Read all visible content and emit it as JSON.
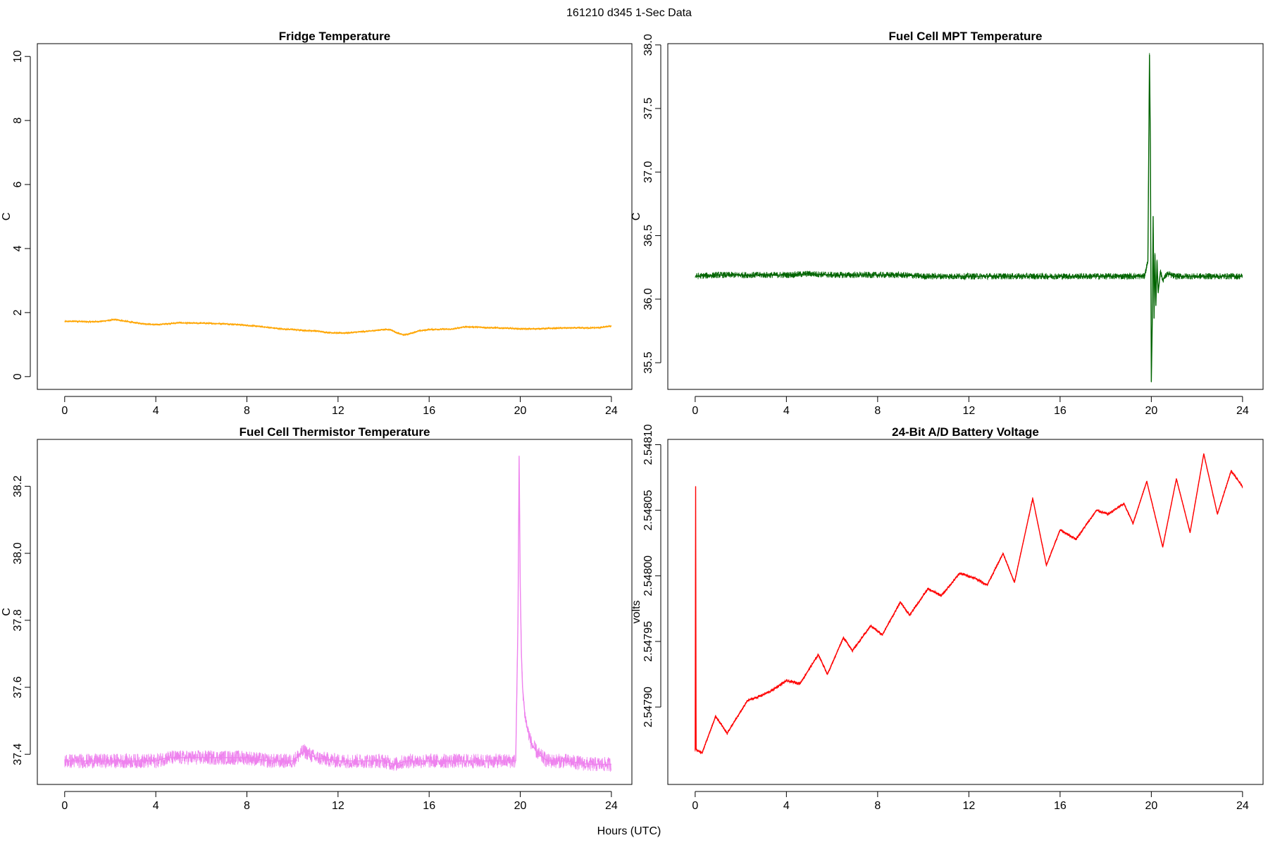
{
  "figure": {
    "suptitle": "161210   d345   1-Sec Data",
    "xlabel": "Hours (UTC)"
  },
  "chart_data": [
    {
      "type": "line",
      "title": "Fridge Temperature",
      "ylabel": "C",
      "xlabel": "",
      "xlim": [
        -1.2,
        24.9
      ],
      "ylim": [
        -0.4,
        10.4
      ],
      "xticks": [
        0,
        4,
        8,
        12,
        16,
        20,
        24
      ],
      "yticks": [
        0,
        2,
        4,
        6,
        8,
        10
      ],
      "ytick_labels": [
        "0",
        "2",
        "4",
        "6",
        "8",
        "10"
      ],
      "grid": false,
      "series": [
        {
          "color": "#FFA500",
          "noise": 0.03,
          "x": [
            0,
            0.5,
            1,
            1.5,
            2,
            2.2,
            2.5,
            3,
            3.5,
            4,
            4.5,
            5,
            5.5,
            6,
            6.5,
            7,
            7.5,
            8,
            8.5,
            9,
            9.5,
            10,
            10.5,
            11,
            11.5,
            12,
            12.5,
            13,
            13.5,
            14,
            14.3,
            14.6,
            14.9,
            15.2,
            15.5,
            16,
            16.5,
            17,
            17.5,
            18,
            18.5,
            19,
            19.5,
            20,
            20.5,
            21,
            21.5,
            22,
            22.5,
            23,
            23.5,
            24
          ],
          "y": [
            1.72,
            1.73,
            1.71,
            1.72,
            1.76,
            1.78,
            1.75,
            1.69,
            1.65,
            1.62,
            1.65,
            1.68,
            1.67,
            1.67,
            1.66,
            1.65,
            1.63,
            1.6,
            1.57,
            1.53,
            1.49,
            1.47,
            1.44,
            1.43,
            1.38,
            1.36,
            1.37,
            1.4,
            1.43,
            1.47,
            1.47,
            1.36,
            1.3,
            1.35,
            1.42,
            1.47,
            1.48,
            1.48,
            1.55,
            1.55,
            1.53,
            1.52,
            1.51,
            1.49,
            1.49,
            1.5,
            1.51,
            1.52,
            1.52,
            1.52,
            1.53,
            1.58
          ]
        }
      ]
    },
    {
      "type": "line",
      "title": "Fuel Cell MPT Temperature",
      "ylabel": "C",
      "xlabel": "",
      "xlim": [
        -1.2,
        24.9
      ],
      "ylim": [
        35.29,
        38.01
      ],
      "xticks": [
        0,
        4,
        8,
        12,
        16,
        20,
        24
      ],
      "yticks": [
        35.5,
        36.0,
        36.5,
        37.0,
        37.5,
        38.0
      ],
      "ytick_labels": [
        "35.5",
        "36.0",
        "36.5",
        "37.0",
        "37.5",
        "38.0"
      ],
      "grid": false,
      "series": [
        {
          "color": "#006400",
          "noise": 0.025,
          "x": [
            0,
            1,
            2,
            3,
            4,
            5,
            6,
            7,
            8,
            9,
            10,
            11,
            12,
            13,
            14,
            15,
            16,
            17,
            18,
            19,
            19.7,
            19.85,
            19.92,
            19.96,
            20.0,
            20.04,
            20.08,
            20.12,
            20.16,
            20.2,
            20.25,
            20.3,
            20.4,
            20.5,
            20.7,
            21,
            22,
            23,
            24
          ],
          "y": [
            36.18,
            36.19,
            36.19,
            36.19,
            36.19,
            36.2,
            36.19,
            36.19,
            36.19,
            36.19,
            36.18,
            36.18,
            36.18,
            36.18,
            36.18,
            36.18,
            36.18,
            36.18,
            36.18,
            36.18,
            36.18,
            36.3,
            37.92,
            37.2,
            35.35,
            35.8,
            36.65,
            35.85,
            36.35,
            35.95,
            36.3,
            36.05,
            36.22,
            36.15,
            36.2,
            36.18,
            36.18,
            36.18,
            36.18
          ]
        }
      ]
    },
    {
      "type": "line",
      "title": "Fuel Cell Thermistor Temperature",
      "ylabel": "C",
      "xlabel": "",
      "xlim": [
        -1.2,
        24.9
      ],
      "ylim": [
        37.31,
        38.34
      ],
      "xticks": [
        0,
        4,
        8,
        12,
        16,
        20,
        24
      ],
      "yticks": [
        37.4,
        37.6,
        37.8,
        38.0,
        38.2
      ],
      "ytick_labels": [
        "37.4",
        "37.6",
        "37.8",
        "38.0",
        "38.2"
      ],
      "grid": false,
      "series": [
        {
          "color": "#EE82EE",
          "noise": 0.022,
          "x": [
            0,
            2,
            4,
            4.5,
            5,
            6,
            7,
            8,
            9,
            10,
            10.5,
            11,
            12,
            13,
            14,
            14.5,
            15,
            16,
            17,
            18,
            19,
            19.8,
            19.9,
            19.95,
            20.0,
            20.05,
            20.1,
            20.2,
            20.3,
            20.5,
            20.8,
            21.2,
            22,
            23,
            24
          ],
          "y": [
            37.38,
            37.38,
            37.38,
            37.39,
            37.39,
            37.39,
            37.39,
            37.39,
            37.38,
            37.38,
            37.41,
            37.39,
            37.38,
            37.38,
            37.38,
            37.37,
            37.38,
            37.38,
            37.38,
            37.38,
            37.38,
            37.38,
            37.8,
            38.29,
            37.9,
            37.7,
            37.6,
            37.52,
            37.48,
            37.43,
            37.4,
            37.38,
            37.38,
            37.37,
            37.37
          ]
        }
      ]
    },
    {
      "type": "line",
      "title": "24-Bit A/D Battery Voltage",
      "ylabel": "volts",
      "xlabel": "",
      "xlim": [
        -1.2,
        24.9
      ],
      "ylim": [
        2.547841,
        2.548104
      ],
      "xticks": [
        0,
        4,
        8,
        12,
        16,
        20,
        24
      ],
      "yticks": [
        2.5479,
        2.54795,
        2.548,
        2.54805,
        2.5481
      ],
      "ytick_labels": [
        "2.54790",
        "2.54795",
        "2.54800",
        "2.54805",
        "2.54810"
      ],
      "grid": false,
      "series": [
        {
          "color": "#FF0000",
          "noise": 1.2e-06,
          "x": [
            0,
            0.02,
            0.04,
            0.1,
            0.3,
            0.9,
            1.4,
            2.3,
            2.8,
            3.3,
            4,
            4.6,
            5.4,
            5.8,
            6.5,
            6.9,
            7.7,
            8.2,
            9,
            9.4,
            10.2,
            10.8,
            11.6,
            12.3,
            12.8,
            13.5,
            14.0,
            14.8,
            15.4,
            16.0,
            16.7,
            17.6,
            18.1,
            18.8,
            19.2,
            19.8,
            20.5,
            21.1,
            21.7,
            22.3,
            22.9,
            23.5,
            24
          ],
          "y": [
            2.547867,
            2.548068,
            2.547868,
            2.547867,
            2.547865,
            2.547893,
            2.54788,
            2.547905,
            2.547908,
            2.547912,
            2.54792,
            2.547918,
            2.54794,
            2.547925,
            2.547953,
            2.547943,
            2.547962,
            2.547955,
            2.54798,
            2.54797,
            2.54799,
            2.547985,
            2.548002,
            2.547998,
            2.547993,
            2.548017,
            2.547995,
            2.548059,
            2.548008,
            2.548035,
            2.548028,
            2.54805,
            2.548047,
            2.548055,
            2.54804,
            2.548072,
            2.548022,
            2.548074,
            2.548033,
            2.548093,
            2.548047,
            2.54808,
            2.548068
          ]
        }
      ]
    }
  ]
}
